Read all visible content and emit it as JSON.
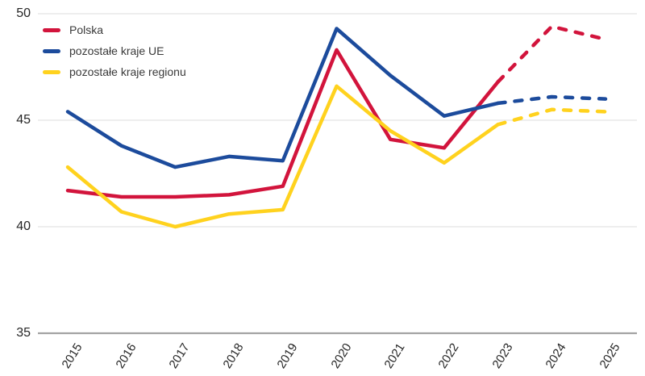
{
  "chart_data": {
    "type": "line",
    "title": "",
    "xlabel": "",
    "ylabel": "",
    "categories": [
      "2015",
      "2016",
      "2017",
      "2018",
      "2019",
      "2020",
      "2021",
      "2022",
      "2023",
      "2024",
      "2025"
    ],
    "series": [
      {
        "name": "Polska",
        "color": "#d2143c",
        "values": [
          41.7,
          41.4,
          41.4,
          41.5,
          41.9,
          48.3,
          44.1,
          43.7,
          46.8,
          49.4,
          48.8
        ]
      },
      {
        "name": "pozostałe kraje UE",
        "color": "#1c4b9c",
        "values": [
          45.4,
          43.8,
          42.8,
          43.3,
          43.1,
          49.3,
          47.1,
          45.2,
          45.8,
          46.1,
          46.0
        ]
      },
      {
        "name": "pozostałe kraje regionu",
        "color": "#ffd21e",
        "values": [
          42.8,
          40.7,
          40.0,
          40.6,
          40.8,
          46.6,
          44.5,
          43.0,
          44.8,
          45.5,
          45.4
        ]
      }
    ],
    "dashed_from_category": "2023",
    "ylim": [
      35,
      50
    ],
    "yticks": [
      35,
      40,
      45,
      50
    ],
    "grid": "horizontal",
    "legend_position": "top-left"
  },
  "colors": {
    "grid": "#e3e3e3",
    "axis": "#a3a3a3",
    "tick_text": "#262626",
    "legend_text": "#3a3a3a"
  }
}
